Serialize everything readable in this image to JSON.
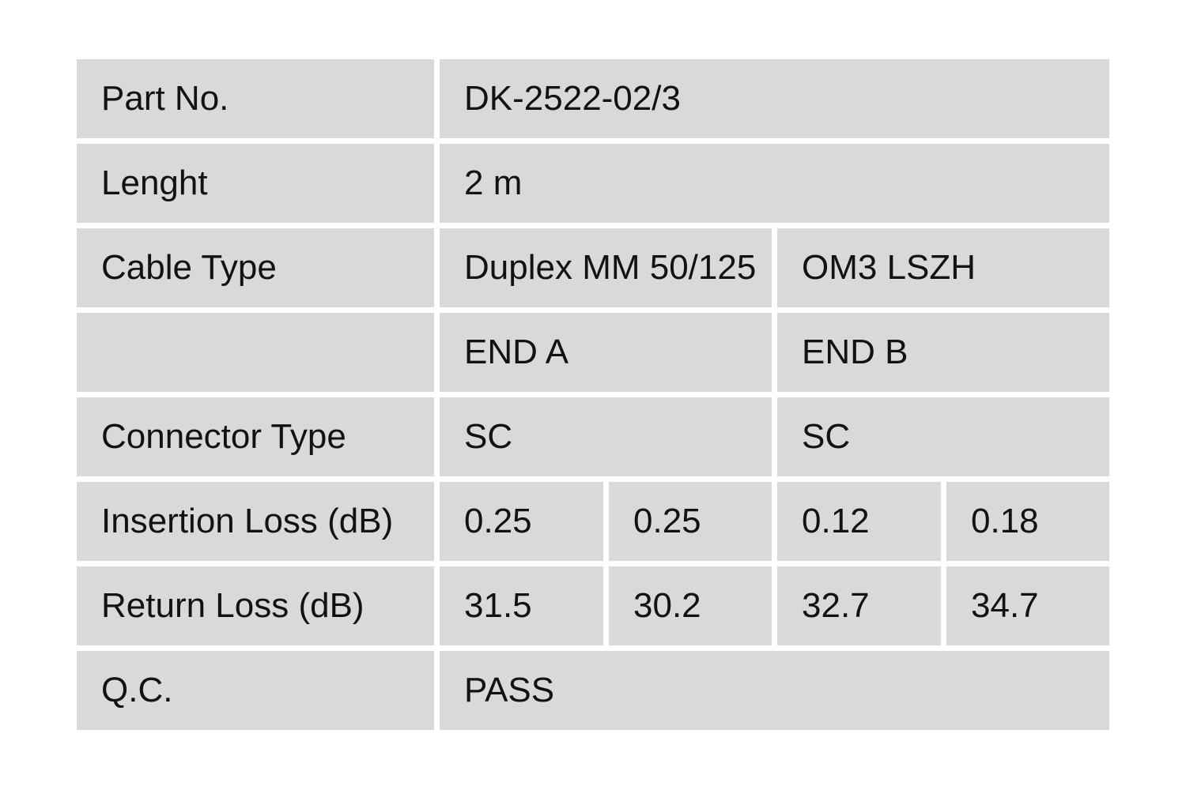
{
  "colors": {
    "cell_background": "#d9d9d9",
    "page_background": "#ffffff",
    "text": "#121212"
  },
  "table": {
    "part_no": {
      "label": "Part No.",
      "value": "DK-2522-02/3"
    },
    "length": {
      "label": "Lenght",
      "value": "2 m"
    },
    "cable_type": {
      "label": "Cable Type",
      "value_a": "Duplex MM 50/125",
      "value_b": "OM3 LSZH"
    },
    "ends": {
      "label": "",
      "end_a": "END A",
      "end_b": "END B"
    },
    "connector_type": {
      "label": "Connector Type",
      "end_a": "SC",
      "end_b": "SC"
    },
    "insertion_loss": {
      "label": "Insertion Loss (dB)",
      "values": [
        "0.25",
        "0.25",
        "0.12",
        "0.18"
      ]
    },
    "return_loss": {
      "label": "Return Loss (dB)",
      "values": [
        "31.5",
        "30.2",
        "32.7",
        "34.7"
      ]
    },
    "qc": {
      "label": "Q.C.",
      "value": "PASS"
    }
  }
}
